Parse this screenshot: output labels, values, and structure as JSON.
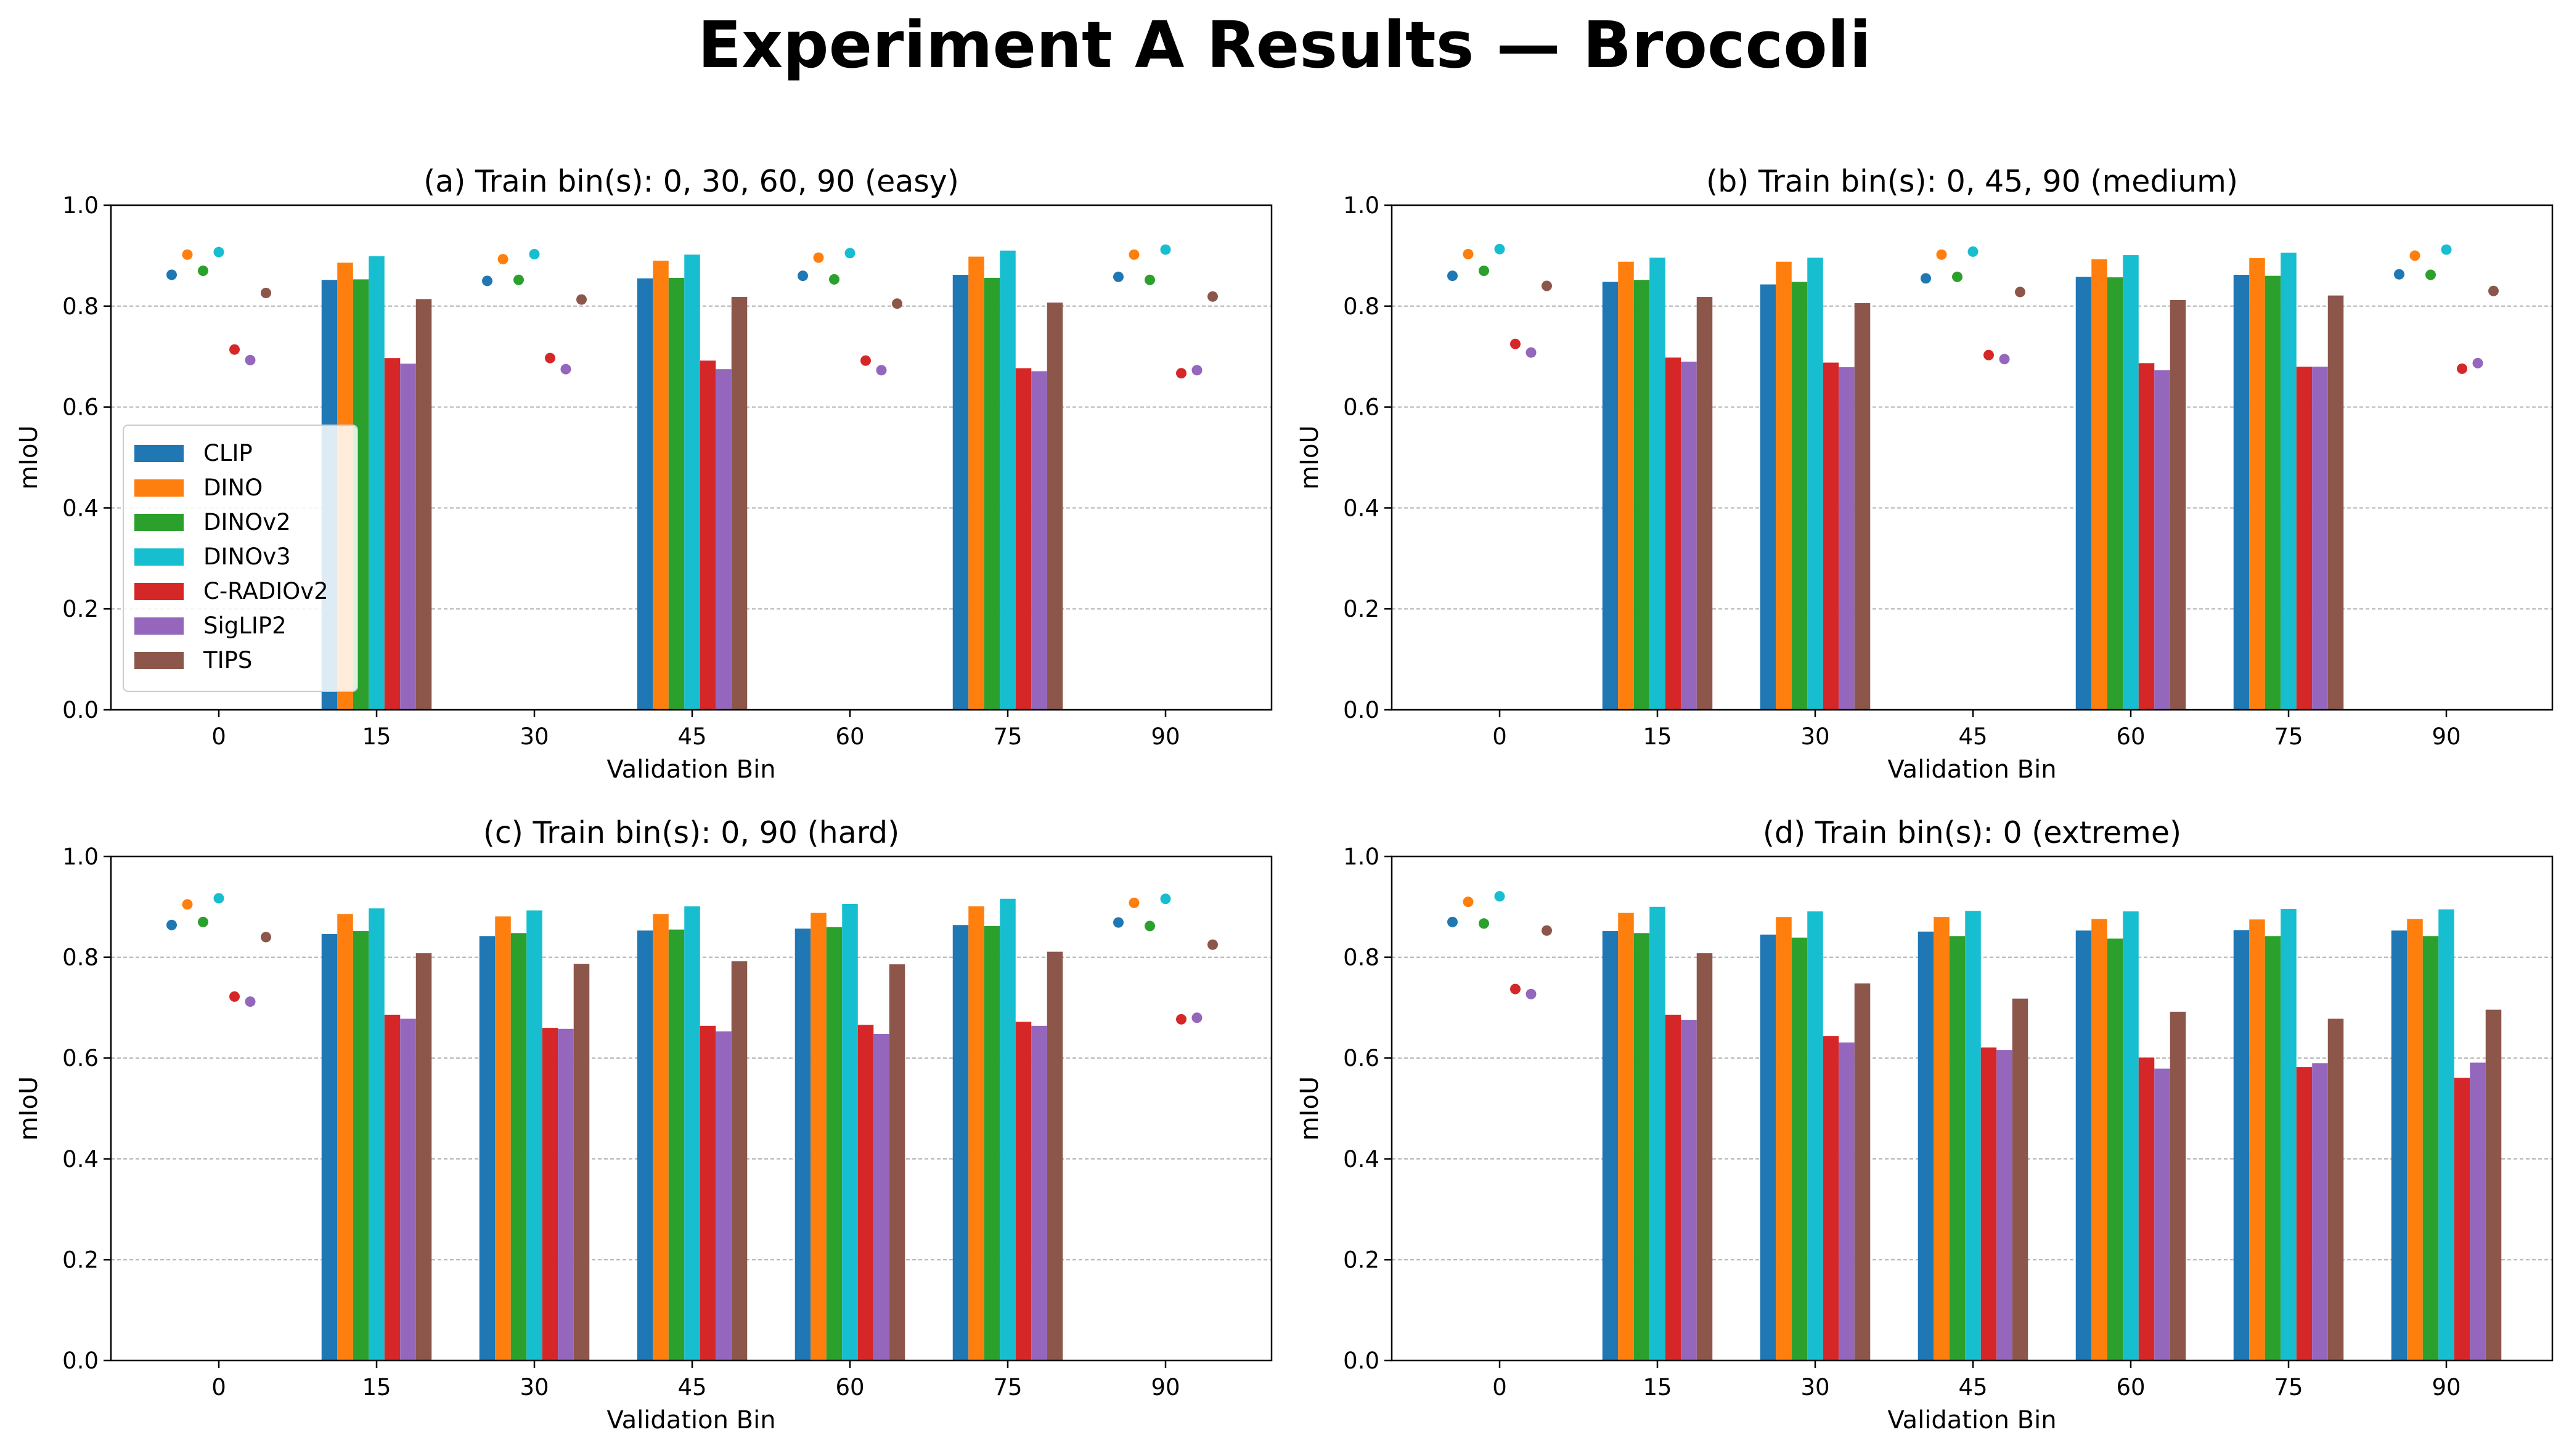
{
  "figure": {
    "title": "Experiment A Results — Broccoli"
  },
  "series_colors": {
    "CLIP": "#1f77b4",
    "DINO": "#ff7f0e",
    "DINOv2": "#2ca02c",
    "DINOv3": "#17becf",
    "C-RADIOv2": "#d62728",
    "SigLIP2": "#9467bd",
    "TIPS": "#8c564b"
  },
  "chart_data": [
    {
      "type": "bar",
      "title": "(a) Train bin(s): 0, 30, 60, 90 (easy)",
      "xlabel": "Validation Bin",
      "ylabel": "mIoU",
      "ylim": [
        0,
        1.0
      ],
      "yticks": [
        "0.0",
        "0.2",
        "0.4",
        "0.6",
        "0.8",
        "1.0"
      ],
      "categories": [
        "0",
        "15",
        "30",
        "45",
        "60",
        "75",
        "90"
      ],
      "train_bins": [
        "0",
        "30",
        "60",
        "90"
      ],
      "grid": "y dashed",
      "legend": "center-left",
      "series": [
        {
          "name": "CLIP",
          "values": [
            0.862,
            0.852,
            0.85,
            0.855,
            0.86,
            0.862,
            0.858
          ]
        },
        {
          "name": "DINO",
          "values": [
            0.902,
            0.886,
            0.893,
            0.89,
            0.896,
            0.898,
            0.902
          ]
        },
        {
          "name": "DINOv2",
          "values": [
            0.87,
            0.853,
            0.852,
            0.856,
            0.853,
            0.856,
            0.852
          ]
        },
        {
          "name": "DINOv3",
          "values": [
            0.907,
            0.899,
            0.903,
            0.902,
            0.905,
            0.91,
            0.912
          ]
        },
        {
          "name": "C-RADIOv2",
          "values": [
            0.714,
            0.697,
            0.697,
            0.692,
            0.692,
            0.677,
            0.667
          ]
        },
        {
          "name": "SigLIP2",
          "values": [
            0.693,
            0.686,
            0.675,
            0.675,
            0.673,
            0.671,
            0.673
          ]
        },
        {
          "name": "TIPS",
          "values": [
            0.826,
            0.814,
            0.813,
            0.818,
            0.805,
            0.807,
            0.819
          ]
        }
      ]
    },
    {
      "type": "bar",
      "title": "(b) Train bin(s): 0, 45, 90 (medium)",
      "xlabel": "Validation Bin",
      "ylabel": "mIoU",
      "ylim": [
        0,
        1.0
      ],
      "yticks": [
        "0.0",
        "0.2",
        "0.4",
        "0.6",
        "0.8",
        "1.0"
      ],
      "categories": [
        "0",
        "15",
        "30",
        "45",
        "60",
        "75",
        "90"
      ],
      "train_bins": [
        "0",
        "45",
        "90"
      ],
      "grid": "y dashed",
      "series": [
        {
          "name": "CLIP",
          "values": [
            0.86,
            0.848,
            0.843,
            0.855,
            0.858,
            0.862,
            0.863
          ]
        },
        {
          "name": "DINO",
          "values": [
            0.903,
            0.888,
            0.888,
            0.902,
            0.893,
            0.895,
            0.9
          ]
        },
        {
          "name": "DINOv2",
          "values": [
            0.87,
            0.852,
            0.848,
            0.858,
            0.857,
            0.86,
            0.862
          ]
        },
        {
          "name": "DINOv3",
          "values": [
            0.913,
            0.896,
            0.896,
            0.908,
            0.901,
            0.906,
            0.912
          ]
        },
        {
          "name": "C-RADIOv2",
          "values": [
            0.725,
            0.698,
            0.688,
            0.703,
            0.687,
            0.68,
            0.676
          ]
        },
        {
          "name": "SigLIP2",
          "values": [
            0.708,
            0.69,
            0.679,
            0.695,
            0.673,
            0.68,
            0.687
          ]
        },
        {
          "name": "TIPS",
          "values": [
            0.84,
            0.818,
            0.806,
            0.828,
            0.812,
            0.821,
            0.83
          ]
        }
      ]
    },
    {
      "type": "bar",
      "title": "(c) Train bin(s): 0, 90 (hard)",
      "xlabel": "Validation Bin",
      "ylabel": "mIoU",
      "ylim": [
        0,
        1.0
      ],
      "yticks": [
        "0.0",
        "0.2",
        "0.4",
        "0.6",
        "0.8",
        "1.0"
      ],
      "categories": [
        "0",
        "15",
        "30",
        "45",
        "60",
        "75",
        "90"
      ],
      "train_bins": [
        "0",
        "90"
      ],
      "grid": "y dashed",
      "series": [
        {
          "name": "CLIP",
          "values": [
            0.864,
            0.846,
            0.842,
            0.853,
            0.857,
            0.864,
            0.869
          ]
        },
        {
          "name": "DINO",
          "values": [
            0.905,
            0.886,
            0.881,
            0.886,
            0.888,
            0.901,
            0.908
          ]
        },
        {
          "name": "DINOv2",
          "values": [
            0.87,
            0.852,
            0.848,
            0.855,
            0.86,
            0.862,
            0.862
          ]
        },
        {
          "name": "DINOv3",
          "values": [
            0.917,
            0.897,
            0.893,
            0.901,
            0.906,
            0.916,
            0.916
          ]
        },
        {
          "name": "C-RADIOv2",
          "values": [
            0.722,
            0.686,
            0.66,
            0.664,
            0.666,
            0.672,
            0.677
          ]
        },
        {
          "name": "SigLIP2",
          "values": [
            0.712,
            0.678,
            0.658,
            0.653,
            0.648,
            0.664,
            0.68
          ]
        },
        {
          "name": "TIPS",
          "values": [
            0.84,
            0.808,
            0.787,
            0.792,
            0.786,
            0.811,
            0.825
          ]
        }
      ]
    },
    {
      "type": "bar",
      "title": "(d) Train bin(s): 0 (extreme)",
      "xlabel": "Validation Bin",
      "ylabel": "mIoU",
      "ylim": [
        0,
        1.0
      ],
      "yticks": [
        "0.0",
        "0.2",
        "0.4",
        "0.6",
        "0.8",
        "1.0"
      ],
      "categories": [
        "0",
        "15",
        "30",
        "45",
        "60",
        "75",
        "90"
      ],
      "train_bins": [
        "0"
      ],
      "grid": "y dashed",
      "series": [
        {
          "name": "CLIP",
          "values": [
            0.87,
            0.852,
            0.845,
            0.851,
            0.853,
            0.854,
            0.853
          ]
        },
        {
          "name": "DINO",
          "values": [
            0.91,
            0.888,
            0.88,
            0.88,
            0.876,
            0.875,
            0.876
          ]
        },
        {
          "name": "DINOv2",
          "values": [
            0.867,
            0.848,
            0.839,
            0.842,
            0.837,
            0.842,
            0.842
          ]
        },
        {
          "name": "DINOv3",
          "values": [
            0.921,
            0.9,
            0.891,
            0.892,
            0.891,
            0.896,
            0.895
          ]
        },
        {
          "name": "C-RADIOv2",
          "values": [
            0.737,
            0.686,
            0.644,
            0.621,
            0.601,
            0.582,
            0.561
          ]
        },
        {
          "name": "SigLIP2",
          "values": [
            0.727,
            0.676,
            0.631,
            0.616,
            0.579,
            0.59,
            0.591
          ]
        },
        {
          "name": "TIPS",
          "values": [
            0.853,
            0.808,
            0.748,
            0.718,
            0.692,
            0.678,
            0.696
          ]
        }
      ]
    }
  ]
}
